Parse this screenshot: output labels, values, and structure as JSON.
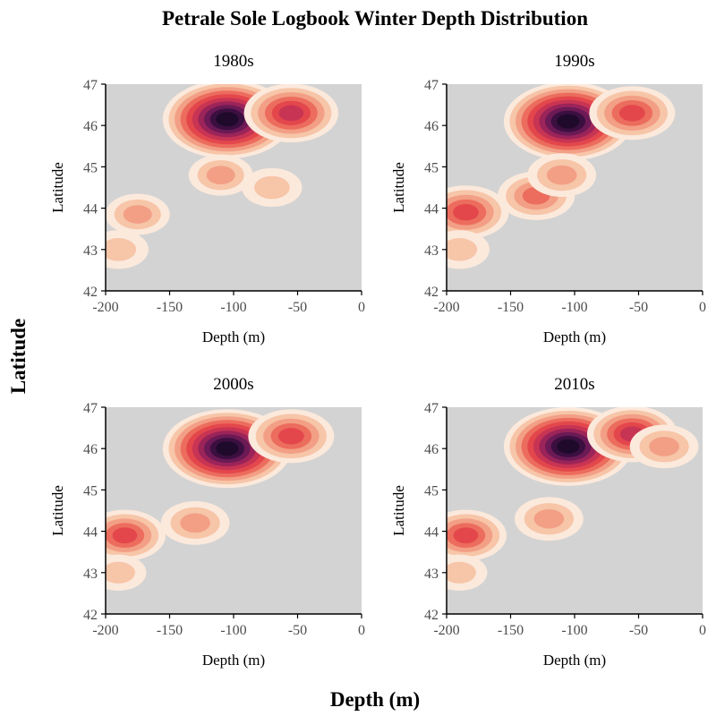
{
  "figure": {
    "title": "Petrale Sole Logbook Winter Depth Distribution",
    "xlabel": "Depth (m)",
    "ylabel": "Latitude"
  },
  "colors": {
    "panel_background": "#d3d3d3",
    "density_scale": [
      "#fbe9dc",
      "#f7c5a8",
      "#f29f86",
      "#ec6c5d",
      "#e3474c",
      "#c83453",
      "#9b2459",
      "#6b1a55",
      "#3b0f40",
      "#1f0a2b"
    ]
  },
  "chart_data": [
    {
      "type": "heatmap",
      "subtitle": "1980s",
      "xlabel": "Depth (m)",
      "ylabel": "Latitude",
      "xlim": [
        -200,
        0
      ],
      "ylim": [
        42,
        47
      ],
      "xticks": [
        "-200",
        "-150",
        "-100",
        "-50",
        "0"
      ],
      "yticks": [
        "42",
        "43",
        "44",
        "45",
        "46",
        "47"
      ],
      "density_peaks": [
        {
          "depth": -105,
          "latitude": 46.15,
          "density": 1.0
        },
        {
          "depth": -55,
          "latitude": 46.3,
          "density": 0.6
        },
        {
          "depth": -175,
          "latitude": 43.85,
          "density": 0.25
        },
        {
          "depth": -110,
          "latitude": 44.8,
          "density": 0.25
        },
        {
          "depth": -190,
          "latitude": 43.0,
          "density": 0.2
        },
        {
          "depth": -70,
          "latitude": 44.5,
          "density": 0.2
        }
      ]
    },
    {
      "type": "heatmap",
      "subtitle": "1990s",
      "xlabel": "Depth (m)",
      "ylabel": "Latitude",
      "xlim": [
        -200,
        0
      ],
      "ylim": [
        42,
        47
      ],
      "xticks": [
        "-200",
        "-150",
        "-100",
        "-50",
        "0"
      ],
      "yticks": [
        "42",
        "43",
        "44",
        "45",
        "46",
        "47"
      ],
      "density_peaks": [
        {
          "depth": -105,
          "latitude": 46.1,
          "density": 1.0
        },
        {
          "depth": -55,
          "latitude": 46.3,
          "density": 0.5
        },
        {
          "depth": -185,
          "latitude": 43.9,
          "density": 0.5
        },
        {
          "depth": -130,
          "latitude": 44.3,
          "density": 0.4
        },
        {
          "depth": -110,
          "latitude": 44.8,
          "density": 0.3
        },
        {
          "depth": -190,
          "latitude": 43.0,
          "density": 0.2
        }
      ]
    },
    {
      "type": "heatmap",
      "subtitle": "2000s",
      "xlabel": "Depth (m)",
      "ylabel": "Latitude",
      "xlim": [
        -200,
        0
      ],
      "ylim": [
        42,
        47
      ],
      "xticks": [
        "-200",
        "-150",
        "-100",
        "-50",
        "0"
      ],
      "yticks": [
        "42",
        "43",
        "44",
        "45",
        "46",
        "47"
      ],
      "density_peaks": [
        {
          "depth": -105,
          "latitude": 46.0,
          "density": 1.0
        },
        {
          "depth": -55,
          "latitude": 46.3,
          "density": 0.5
        },
        {
          "depth": -185,
          "latitude": 43.9,
          "density": 0.45
        },
        {
          "depth": -130,
          "latitude": 44.2,
          "density": 0.3
        },
        {
          "depth": -190,
          "latitude": 43.0,
          "density": 0.15
        }
      ]
    },
    {
      "type": "heatmap",
      "subtitle": "2010s",
      "xlabel": "Depth (m)",
      "ylabel": "Latitude",
      "xlim": [
        -200,
        0
      ],
      "ylim": [
        42,
        47
      ],
      "xticks": [
        "-200",
        "-150",
        "-100",
        "-50",
        "0"
      ],
      "yticks": [
        "42",
        "43",
        "44",
        "45",
        "46",
        "47"
      ],
      "density_peaks": [
        {
          "depth": -105,
          "latitude": 46.05,
          "density": 1.0
        },
        {
          "depth": -55,
          "latitude": 46.35,
          "density": 0.55
        },
        {
          "depth": -30,
          "latitude": 46.05,
          "density": 0.3
        },
        {
          "depth": -185,
          "latitude": 43.9,
          "density": 0.45
        },
        {
          "depth": -120,
          "latitude": 44.3,
          "density": 0.3
        },
        {
          "depth": -190,
          "latitude": 43.0,
          "density": 0.15
        }
      ]
    }
  ]
}
